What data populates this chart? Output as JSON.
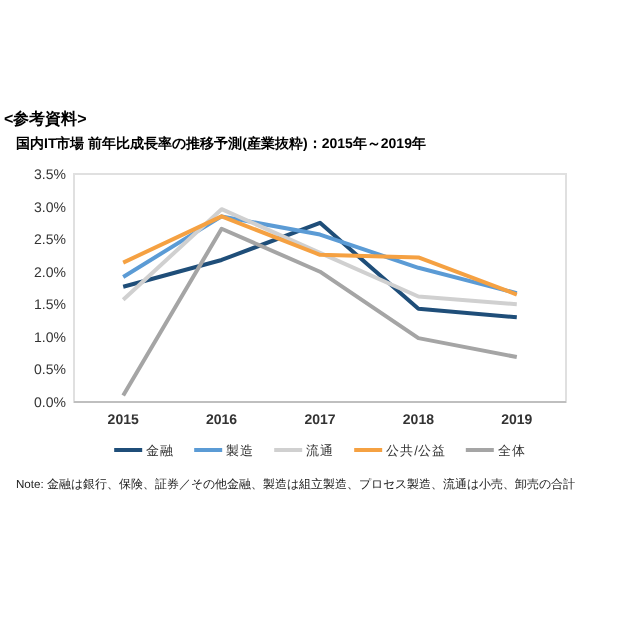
{
  "chart_data": {
    "type": "line",
    "title": "<参考資料>",
    "subtitle": "国内IT市場 前年比成長率の推移予測(産業抜粋)：2015年～2019年",
    "categories": [
      "2015",
      "2016",
      "2017",
      "2018",
      "2019"
    ],
    "series": [
      {
        "name": "金融",
        "color": "#1f4e79",
        "values": [
          1.77,
          2.18,
          2.75,
          1.43,
          1.3
        ]
      },
      {
        "name": "製造",
        "color": "#5b9bd5",
        "values": [
          1.92,
          2.85,
          2.57,
          2.06,
          1.67
        ]
      },
      {
        "name": "流通",
        "color": "#d0d0d0",
        "values": [
          1.57,
          2.96,
          2.29,
          1.62,
          1.5
        ]
      },
      {
        "name": "公共/公益",
        "color": "#f5a142",
        "values": [
          2.14,
          2.85,
          2.26,
          2.22,
          1.65
        ]
      },
      {
        "name": "全体",
        "color": "#a5a5a5",
        "values": [
          0.1,
          2.66,
          2.0,
          0.98,
          0.69
        ]
      }
    ],
    "ylim": [
      0,
      3.5
    ],
    "yticks": [
      {
        "value": 0,
        "label": "0.0%"
      },
      {
        "value": 0.5,
        "label": "0.5%"
      },
      {
        "value": 1,
        "label": "1.0%"
      },
      {
        "value": 1.5,
        "label": "1.5%"
      },
      {
        "value": 2,
        "label": "2.0%"
      },
      {
        "value": 2.5,
        "label": "2.5%"
      },
      {
        "value": 3,
        "label": "3.0%"
      },
      {
        "value": 3.5,
        "label": "3.5%"
      }
    ],
    "legend": "bottom",
    "grid": false,
    "annotations": [
      "Note: 金融は銀行、保険、証券／その他金融、製造は組立製造、プロセス製造、流通は小売、卸売の合計"
    ]
  }
}
